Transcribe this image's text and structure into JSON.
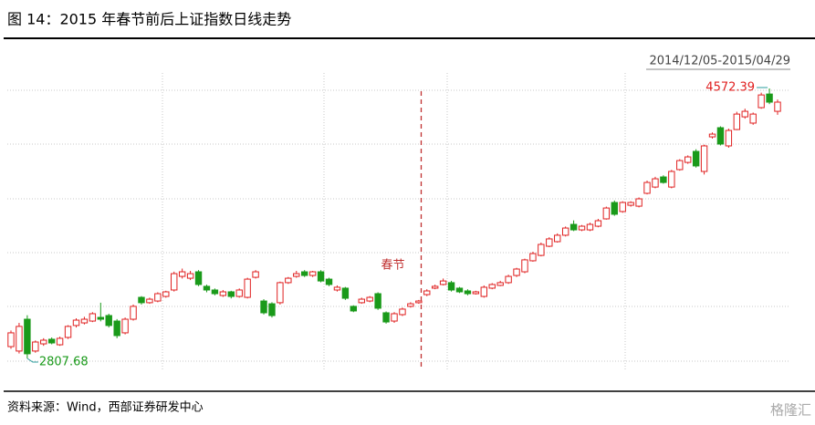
{
  "chart_data": {
    "type": "candlestick",
    "title": "图 14：2015 年春节前后上证指数日线走势",
    "subtitle": "2014/12/05-2015/04/29",
    "annotations": [
      "4572.39",
      "2807.68",
      "春节"
    ],
    "up_color": "#e02020",
    "down_color": "#1a9a1a",
    "ylim": [
      2766,
      4638
    ],
    "open": [
      2885,
      2856,
      3064,
      2856,
      2903,
      2933,
      2897,
      2945,
      3023,
      3040,
      3052,
      3076,
      3088,
      3052,
      2975,
      3064,
      3207,
      3172,
      3183,
      3213,
      3255,
      3344,
      3332,
      3374,
      3279,
      3255,
      3219,
      3243,
      3213,
      3207,
      3338,
      3183,
      3165,
      3172,
      3303,
      3344,
      3374,
      3350,
      3374,
      3326,
      3255,
      3267,
      3148,
      3172,
      3183,
      3231,
      3106,
      3052,
      3094,
      3148,
      3172,
      3225,
      3267,
      3291,
      3303,
      3267,
      3249,
      3231,
      3213,
      3267,
      3285,
      3303,
      3350,
      3374,
      3446,
      3481,
      3541,
      3571,
      3613,
      3684,
      3648,
      3648,
      3672,
      3720,
      3827,
      3768,
      3809,
      3803,
      3887,
      3928,
      3994,
      3928,
      4042,
      4089,
      4161,
      4030,
      4256,
      4316,
      4197,
      4304,
      4387,
      4346,
      4447,
      4536,
      4423
    ],
    "high": [
      2990,
      3040,
      3090,
      2925,
      2940,
      2945,
      2950,
      3025,
      3070,
      3080,
      3110,
      3172,
      3100,
      3065,
      3075,
      3160,
      3215,
      3205,
      3240,
      3250,
      3375,
      3395,
      3380,
      3385,
      3290,
      3265,
      3255,
      3250,
      3265,
      3335,
      3385,
      3195,
      3175,
      3310,
      3340,
      3380,
      3385,
      3380,
      3385,
      3335,
      3285,
      3275,
      3155,
      3205,
      3215,
      3240,
      3115,
      3110,
      3140,
      3175,
      3190,
      3260,
      3290,
      3330,
      3315,
      3275,
      3260,
      3250,
      3285,
      3300,
      3315,
      3355,
      3400,
      3460,
      3505,
      3565,
      3600,
      3625,
      3670,
      3710,
      3680,
      3695,
      3720,
      3800,
      3840,
      3835,
      3835,
      3860,
      3970,
      3995,
      4005,
      4040,
      4110,
      4135,
      4175,
      4205,
      4285,
      4325,
      4310,
      4420,
      4440,
      4415,
      4545,
      4572.39,
      4500
    ],
    "low": [
      2870,
      2840,
      2807.68,
      2845,
      2890,
      2900,
      2890,
      2935,
      3010,
      3030,
      3045,
      3050,
      3010,
      2940,
      2965,
      3055,
      3160,
      3165,
      3175,
      3205,
      3245,
      3330,
      3320,
      3280,
      3240,
      3220,
      3210,
      3200,
      3205,
      3200,
      3330,
      3095,
      3075,
      3160,
      3295,
      3335,
      3340,
      3340,
      3305,
      3280,
      3245,
      3190,
      3110,
      3165,
      3175,
      3125,
      3035,
      3040,
      3085,
      3140,
      3165,
      3215,
      3260,
      3285,
      3245,
      3235,
      3220,
      3225,
      3205,
      3260,
      3280,
      3295,
      3340,
      3365,
      3440,
      3475,
      3535,
      3565,
      3605,
      3640,
      3640,
      3640,
      3665,
      3715,
      3740,
      3760,
      3800,
      3795,
      3880,
      3920,
      3950,
      3920,
      4035,
      4080,
      4055,
      4010,
      4245,
      4200,
      4185,
      4300,
      4375,
      4335,
      4440,
      4470,
      4400
    ],
    "close": [
      2975,
      3017,
      2838,
      2915,
      2927,
      2909,
      2939,
      3017,
      3058,
      3064,
      3100,
      3064,
      3023,
      2957,
      3064,
      3148,
      3172,
      3195,
      3231,
      3243,
      3362,
      3374,
      3362,
      3291,
      3255,
      3231,
      3243,
      3213,
      3255,
      3326,
      3374,
      3106,
      3088,
      3303,
      3332,
      3362,
      3350,
      3374,
      3314,
      3291,
      3273,
      3201,
      3118,
      3195,
      3207,
      3136,
      3046,
      3100,
      3130,
      3165,
      3183,
      3249,
      3279,
      3314,
      3255,
      3243,
      3231,
      3243,
      3273,
      3291,
      3303,
      3344,
      3392,
      3452,
      3493,
      3553,
      3589,
      3613,
      3660,
      3648,
      3672,
      3684,
      3708,
      3791,
      3750,
      3827,
      3827,
      3851,
      3958,
      3982,
      3958,
      4030,
      4101,
      4125,
      4066,
      4197,
      4274,
      4209,
      4298,
      4405,
      4423,
      4405,
      4530,
      4483,
      4483
    ]
  },
  "source": "资料来源：Wind，西部证券研发中心",
  "watermark": "格隆汇"
}
